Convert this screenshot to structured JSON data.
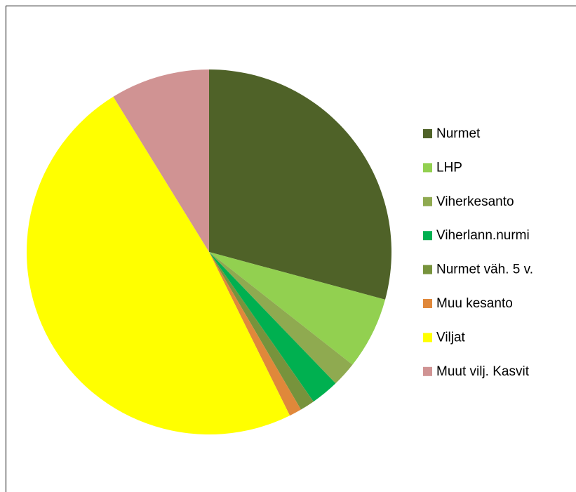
{
  "chart_data": {
    "type": "pie",
    "categories": [
      "Nurmet",
      "LHP",
      "Viherkesanto",
      "Viherlann.nurmi",
      "Nurmet väh. 5 v.",
      "Muu kesanto",
      "Viljat",
      "Muut vilj. Kasvit"
    ],
    "values": [
      29.2,
      6.4,
      2.2,
      2.5,
      1.3,
      1.1,
      48.5,
      8.8
    ],
    "colors": [
      "#4f6228",
      "#92d050",
      "#8faa50",
      "#00b050",
      "#77933c",
      "#e0883a",
      "#ffff00",
      "#d09393"
    ],
    "legend": "right"
  }
}
